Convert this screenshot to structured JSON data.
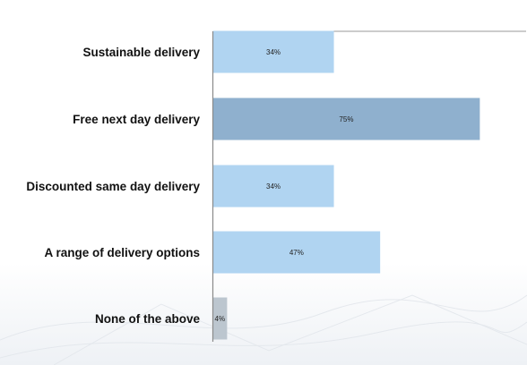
{
  "chart_data": {
    "type": "bar",
    "orientation": "horizontal",
    "categories": [
      "Sustainable delivery",
      "Free next day delivery",
      "Discounted same day delivery",
      "A range of delivery options",
      "None of the above"
    ],
    "values": [
      34,
      75,
      34,
      47,
      4
    ],
    "value_labels": [
      "34%",
      "75%",
      "34%",
      "47%",
      "4%"
    ],
    "bar_colors": [
      "#b0d4f1",
      "#8fb0ce",
      "#b0d4f1",
      "#b0d4f1",
      "#bcc6cf"
    ],
    "xlim": [
      0,
      88
    ],
    "title": "",
    "xlabel": "",
    "ylabel": "",
    "grid": false,
    "legend": "none"
  },
  "colors": {
    "background": "#ffffff",
    "axis": "#8a8a8a"
  }
}
